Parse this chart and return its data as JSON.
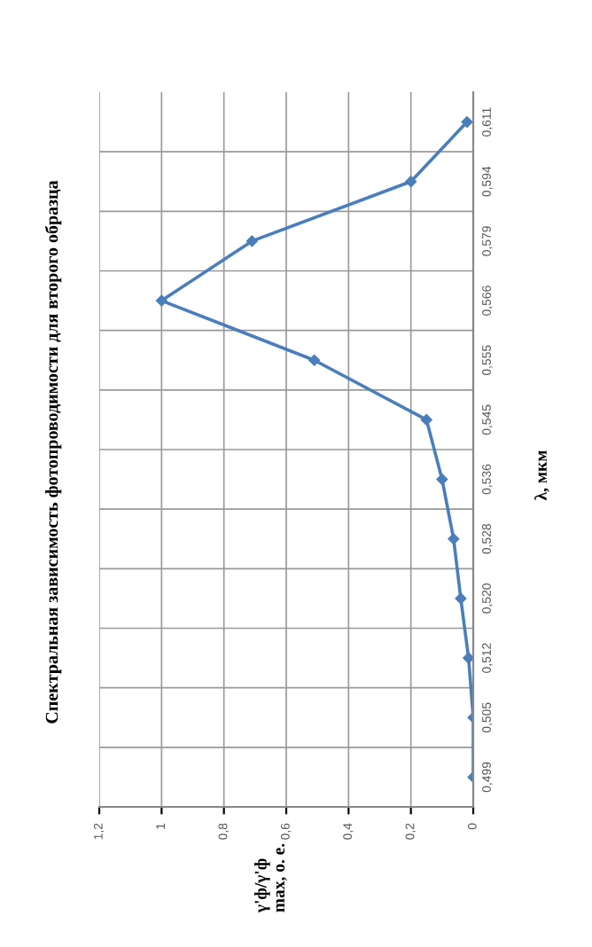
{
  "chart_data": {
    "type": "line",
    "title": "Спектральная зависимость фотопроводимости для второго образца",
    "ylabel": "λ, мкм",
    "annotations": [
      "γ'ф/γ'ф\nmax, о. е."
    ],
    "orientation": "horizontal",
    "categories": [
      "0,611",
      "0,594",
      "0,579",
      "0,566",
      "0,555",
      "0,545",
      "0,536",
      "0,528",
      "0,520",
      "0,512",
      "0,505",
      "0,499"
    ],
    "series": [
      {
        "color": "#4a7ebb",
        "values": [
          0.02,
          0.2,
          0.71,
          1.0,
          0.51,
          0.15,
          0.1,
          0.063,
          0.04,
          0.015,
          0,
          0
        ]
      }
    ],
    "xlim": [
      1.2,
      0
    ],
    "xticks": [
      0,
      {
        "value": 0.2,
        "label": "0,2"
      },
      {
        "value": 0.4,
        "label": "0,4"
      },
      {
        "value": 0.6,
        "label": "0,6"
      },
      {
        "value": 0.8,
        "label": "0,8"
      },
      1,
      {
        "value": 1.2,
        "label": "1,2"
      }
    ],
    "grid": true,
    "marker": "diamond",
    "line_style": "solid",
    "legend": false
  }
}
